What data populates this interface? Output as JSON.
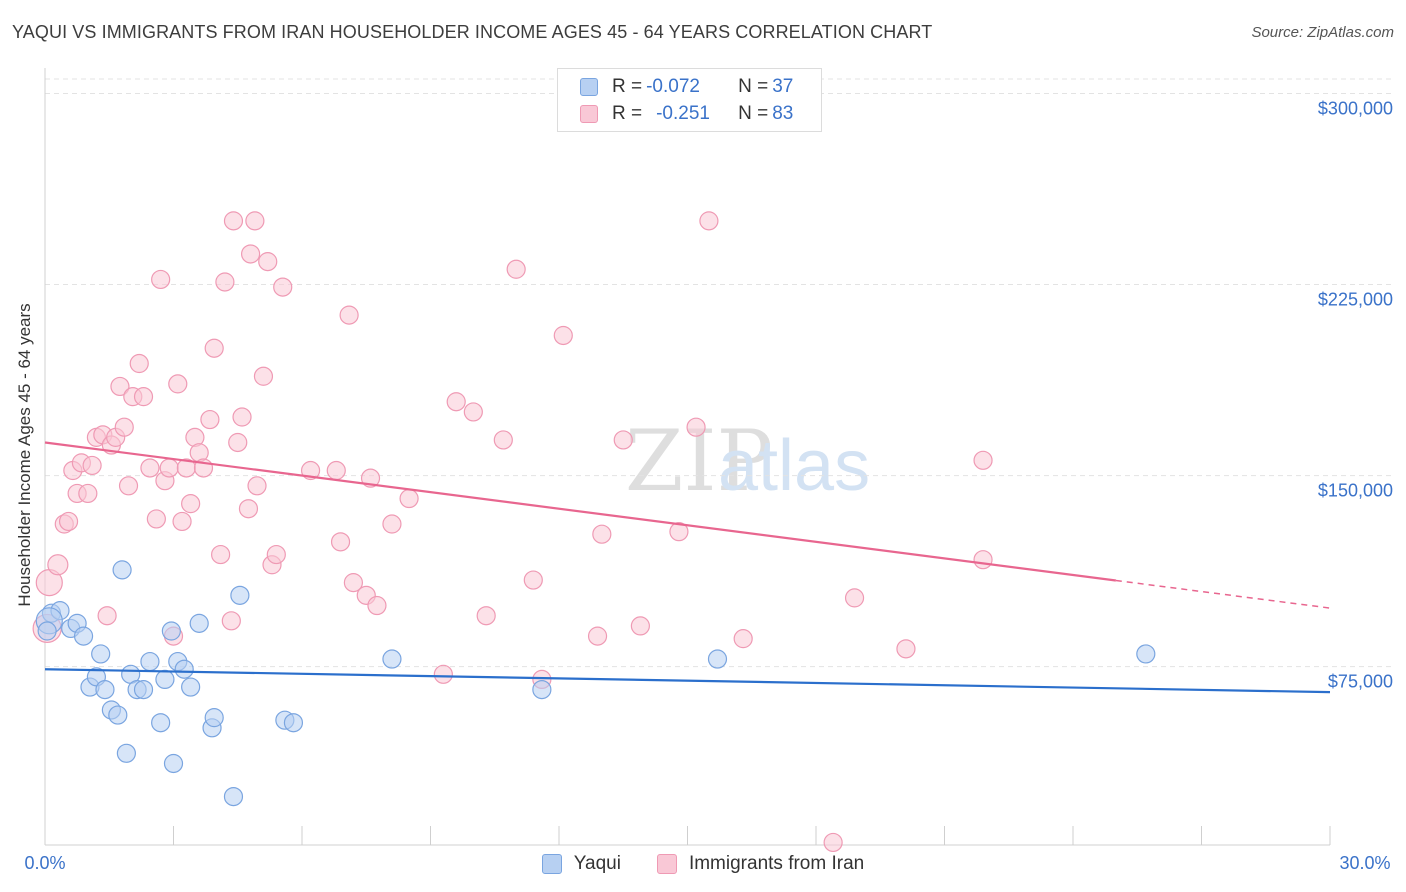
{
  "title": "YAQUI VS IMMIGRANTS FROM IRAN HOUSEHOLDER INCOME AGES 45 - 64 YEARS CORRELATION CHART",
  "source": "Source: ZipAtlas.com",
  "watermark": {
    "zip": "ZIP",
    "atlas": "atlas"
  },
  "legend_top": [
    {
      "r_label": "R = ",
      "r_value": "-0.072",
      "n_label": "N = ",
      "n_value": "37"
    },
    {
      "r_label": "R = ",
      "r_value": "-0.251",
      "n_label": "N = ",
      "n_value": "83"
    }
  ],
  "colors": {
    "yaqui_fill": "#b7d0f2",
    "yaqui_stroke": "#7aa5e0",
    "yaqui_line": "#2b6fcc",
    "iran_fill": "#f9c8d6",
    "iran_stroke": "#ef9ab4",
    "iran_line": "#e8668f",
    "axis_label": "#3a72c9",
    "grid": "#e3e3e3"
  },
  "chart_data": {
    "type": "scatter",
    "title": "YAQUI VS IMMIGRANTS FROM IRAN HOUSEHOLDER INCOME AGES 45 - 64 YEARS CORRELATION CHART",
    "xlabel": "",
    "ylabel": "Householder Income Ages 45 - 64 years",
    "x_tick_labels": [
      "0.0%",
      "30.0%"
    ],
    "y_tick_labels": [
      "$75,000",
      "$150,000",
      "$225,000",
      "$300,000"
    ],
    "y_ticks": [
      75000,
      150000,
      225000,
      300000
    ],
    "xlim": [
      0,
      30
    ],
    "ylim": [
      5000,
      310000
    ],
    "grid": true,
    "legend_position": "bottom-center",
    "series": [
      {
        "name": "Yaqui",
        "r": -0.072,
        "n": 37,
        "trend": {
          "x0": 0,
          "y0": 74000,
          "x1": 30,
          "y1": 65000,
          "dashed_from": null
        },
        "points": [
          {
            "x": 0.15,
            "y": 96000,
            "s": 9
          },
          {
            "x": 0.35,
            "y": 97000,
            "s": 9
          },
          {
            "x": 0.6,
            "y": 90000,
            "s": 9
          },
          {
            "x": 0.75,
            "y": 92000,
            "s": 9
          },
          {
            "x": 0.9,
            "y": 87000,
            "s": 9
          },
          {
            "x": 1.05,
            "y": 67000,
            "s": 9
          },
          {
            "x": 1.2,
            "y": 71000,
            "s": 9
          },
          {
            "x": 1.3,
            "y": 80000,
            "s": 9
          },
          {
            "x": 1.4,
            "y": 66000,
            "s": 9
          },
          {
            "x": 1.55,
            "y": 58000,
            "s": 9
          },
          {
            "x": 1.7,
            "y": 56000,
            "s": 9
          },
          {
            "x": 1.8,
            "y": 113000,
            "s": 9
          },
          {
            "x": 1.9,
            "y": 41000,
            "s": 9
          },
          {
            "x": 2.0,
            "y": 72000,
            "s": 9
          },
          {
            "x": 2.15,
            "y": 66000,
            "s": 9
          },
          {
            "x": 2.3,
            "y": 66000,
            "s": 9
          },
          {
            "x": 2.45,
            "y": 77000,
            "s": 9
          },
          {
            "x": 2.7,
            "y": 53000,
            "s": 9
          },
          {
            "x": 2.8,
            "y": 70000,
            "s": 9
          },
          {
            "x": 2.95,
            "y": 89000,
            "s": 9
          },
          {
            "x": 3.0,
            "y": 37000,
            "s": 9
          },
          {
            "x": 3.1,
            "y": 77000,
            "s": 9
          },
          {
            "x": 3.25,
            "y": 74000,
            "s": 9
          },
          {
            "x": 3.4,
            "y": 67000,
            "s": 9
          },
          {
            "x": 3.6,
            "y": 92000,
            "s": 9
          },
          {
            "x": 3.9,
            "y": 51000,
            "s": 9
          },
          {
            "x": 3.95,
            "y": 55000,
            "s": 9
          },
          {
            "x": 4.4,
            "y": 24000,
            "s": 9
          },
          {
            "x": 4.55,
            "y": 103000,
            "s": 9
          },
          {
            "x": 5.6,
            "y": 54000,
            "s": 9
          },
          {
            "x": 5.8,
            "y": 53000,
            "s": 9
          },
          {
            "x": 8.1,
            "y": 78000,
            "s": 9
          },
          {
            "x": 11.6,
            "y": 66000,
            "s": 9
          },
          {
            "x": 15.7,
            "y": 78000,
            "s": 9
          },
          {
            "x": 25.7,
            "y": 80000,
            "s": 9
          },
          {
            "x": 0.1,
            "y": 93000,
            "s": 13
          },
          {
            "x": 0.05,
            "y": 89000,
            "s": 9
          }
        ]
      },
      {
        "name": "Immigrants from Iran",
        "r": -0.251,
        "n": 83,
        "trend": {
          "x0": 0,
          "y0": 163000,
          "x1": 30,
          "y1": 98000,
          "dashed_from": 25.0
        },
        "points": [
          {
            "x": 0.05,
            "y": 90000,
            "s": 14
          },
          {
            "x": 0.1,
            "y": 108000,
            "s": 13
          },
          {
            "x": 0.3,
            "y": 115000,
            "s": 10
          },
          {
            "x": 0.45,
            "y": 131000,
            "s": 9
          },
          {
            "x": 0.55,
            "y": 132000,
            "s": 9
          },
          {
            "x": 0.65,
            "y": 152000,
            "s": 9
          },
          {
            "x": 0.75,
            "y": 143000,
            "s": 9
          },
          {
            "x": 0.85,
            "y": 155000,
            "s": 9
          },
          {
            "x": 1.0,
            "y": 143000,
            "s": 9
          },
          {
            "x": 1.1,
            "y": 154000,
            "s": 9
          },
          {
            "x": 1.2,
            "y": 165000,
            "s": 9
          },
          {
            "x": 1.35,
            "y": 166000,
            "s": 9
          },
          {
            "x": 1.45,
            "y": 95000,
            "s": 9
          },
          {
            "x": 1.55,
            "y": 162000,
            "s": 9
          },
          {
            "x": 1.65,
            "y": 165000,
            "s": 9
          },
          {
            "x": 1.75,
            "y": 185000,
            "s": 9
          },
          {
            "x": 1.85,
            "y": 169000,
            "s": 9
          },
          {
            "x": 1.95,
            "y": 146000,
            "s": 9
          },
          {
            "x": 2.05,
            "y": 181000,
            "s": 9
          },
          {
            "x": 2.2,
            "y": 194000,
            "s": 9
          },
          {
            "x": 2.3,
            "y": 181000,
            "s": 9
          },
          {
            "x": 2.45,
            "y": 153000,
            "s": 9
          },
          {
            "x": 2.6,
            "y": 133000,
            "s": 9
          },
          {
            "x": 2.7,
            "y": 227000,
            "s": 9
          },
          {
            "x": 2.8,
            "y": 148000,
            "s": 9
          },
          {
            "x": 2.9,
            "y": 153000,
            "s": 9
          },
          {
            "x": 3.0,
            "y": 87000,
            "s": 9
          },
          {
            "x": 3.1,
            "y": 186000,
            "s": 9
          },
          {
            "x": 3.2,
            "y": 132000,
            "s": 9
          },
          {
            "x": 3.3,
            "y": 153000,
            "s": 9
          },
          {
            "x": 3.4,
            "y": 139000,
            "s": 9
          },
          {
            "x": 3.5,
            "y": 165000,
            "s": 9
          },
          {
            "x": 3.6,
            "y": 159000,
            "s": 9
          },
          {
            "x": 3.7,
            "y": 153000,
            "s": 9
          },
          {
            "x": 3.85,
            "y": 172000,
            "s": 9
          },
          {
            "x": 3.95,
            "y": 200000,
            "s": 9
          },
          {
            "x": 4.1,
            "y": 119000,
            "s": 9
          },
          {
            "x": 4.2,
            "y": 226000,
            "s": 9
          },
          {
            "x": 4.35,
            "y": 93000,
            "s": 9
          },
          {
            "x": 4.4,
            "y": 250000,
            "s": 9
          },
          {
            "x": 4.5,
            "y": 163000,
            "s": 9
          },
          {
            "x": 4.6,
            "y": 173000,
            "s": 9
          },
          {
            "x": 4.75,
            "y": 137000,
            "s": 9
          },
          {
            "x": 4.8,
            "y": 237000,
            "s": 9
          },
          {
            "x": 4.9,
            "y": 250000,
            "s": 9
          },
          {
            "x": 4.95,
            "y": 146000,
            "s": 9
          },
          {
            "x": 5.1,
            "y": 189000,
            "s": 9
          },
          {
            "x": 5.2,
            "y": 234000,
            "s": 9
          },
          {
            "x": 5.3,
            "y": 115000,
            "s": 9
          },
          {
            "x": 5.4,
            "y": 119000,
            "s": 9
          },
          {
            "x": 5.55,
            "y": 224000,
            "s": 9
          },
          {
            "x": 6.2,
            "y": 152000,
            "s": 9
          },
          {
            "x": 6.8,
            "y": 152000,
            "s": 9
          },
          {
            "x": 6.9,
            "y": 124000,
            "s": 9
          },
          {
            "x": 7.1,
            "y": 213000,
            "s": 9
          },
          {
            "x": 7.2,
            "y": 108000,
            "s": 9
          },
          {
            "x": 7.5,
            "y": 103000,
            "s": 9
          },
          {
            "x": 7.6,
            "y": 149000,
            "s": 9
          },
          {
            "x": 7.75,
            "y": 99000,
            "s": 9
          },
          {
            "x": 8.1,
            "y": 131000,
            "s": 9
          },
          {
            "x": 8.5,
            "y": 141000,
            "s": 9
          },
          {
            "x": 9.3,
            "y": 72000,
            "s": 9
          },
          {
            "x": 9.6,
            "y": 179000,
            "s": 9
          },
          {
            "x": 10.0,
            "y": 175000,
            "s": 9
          },
          {
            "x": 10.3,
            "y": 95000,
            "s": 9
          },
          {
            "x": 10.7,
            "y": 164000,
            "s": 9
          },
          {
            "x": 11.0,
            "y": 231000,
            "s": 9
          },
          {
            "x": 11.4,
            "y": 109000,
            "s": 9
          },
          {
            "x": 11.6,
            "y": 70000,
            "s": 9
          },
          {
            "x": 12.1,
            "y": 205000,
            "s": 9
          },
          {
            "x": 12.9,
            "y": 87000,
            "s": 9
          },
          {
            "x": 13.0,
            "y": 127000,
            "s": 9
          },
          {
            "x": 13.5,
            "y": 164000,
            "s": 9
          },
          {
            "x": 13.9,
            "y": 91000,
            "s": 9
          },
          {
            "x": 14.8,
            "y": 128000,
            "s": 9
          },
          {
            "x": 15.2,
            "y": 169000,
            "s": 9
          },
          {
            "x": 15.5,
            "y": 250000,
            "s": 9
          },
          {
            "x": 16.3,
            "y": 86000,
            "s": 9
          },
          {
            "x": 18.4,
            "y": 6000,
            "s": 9
          },
          {
            "x": 18.9,
            "y": 102000,
            "s": 9
          },
          {
            "x": 20.1,
            "y": 82000,
            "s": 9
          },
          {
            "x": 21.9,
            "y": 117000,
            "s": 9
          },
          {
            "x": 21.9,
            "y": 156000,
            "s": 9
          }
        ]
      }
    ]
  },
  "legend_bottom": [
    {
      "label": "Yaqui"
    },
    {
      "label": "Immigrants from Iran"
    }
  ]
}
